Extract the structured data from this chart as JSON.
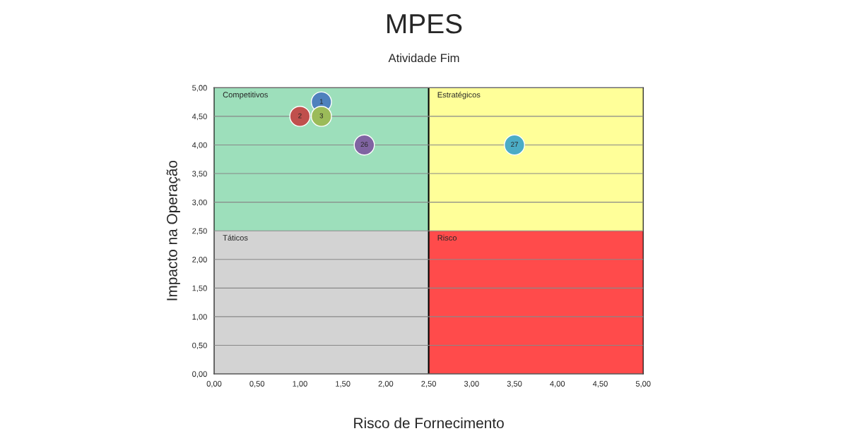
{
  "chart_data": {
    "type": "scatter",
    "title": "MPES",
    "subtitle": "Atividade Fim",
    "xlabel": "Risco de Fornecimento",
    "ylabel": "Impacto na Operação",
    "xlim": [
      0,
      5
    ],
    "ylim": [
      0,
      5
    ],
    "xticks": [
      {
        "value": 0,
        "label": "0,00"
      },
      {
        "value": 0.5,
        "label": "0,50"
      },
      {
        "value": 1,
        "label": "1,00"
      },
      {
        "value": 1.5,
        "label": "1,50"
      },
      {
        "value": 2,
        "label": "2,00"
      },
      {
        "value": 2.5,
        "label": "2,50"
      },
      {
        "value": 3,
        "label": "3,00"
      },
      {
        "value": 3.5,
        "label": "3,50"
      },
      {
        "value": 4,
        "label": "4,00"
      },
      {
        "value": 4.5,
        "label": "4,50"
      },
      {
        "value": 5,
        "label": "5,00"
      }
    ],
    "yticks": [
      {
        "value": 0,
        "label": "0,00"
      },
      {
        "value": 0.5,
        "label": "0,50"
      },
      {
        "value": 1,
        "label": "1,00"
      },
      {
        "value": 1.5,
        "label": "1,50"
      },
      {
        "value": 2,
        "label": "2,00"
      },
      {
        "value": 2.5,
        "label": "2,50"
      },
      {
        "value": 3,
        "label": "3,00"
      },
      {
        "value": 3.5,
        "label": "3,50"
      },
      {
        "value": 4,
        "label": "4,00"
      },
      {
        "value": 4.5,
        "label": "4,50"
      },
      {
        "value": 5,
        "label": "5,00"
      }
    ],
    "grid": "y",
    "marker": "circle",
    "bands": [
      {
        "axis": "x",
        "from": 0,
        "to": 2.5,
        "label": "Competitivos",
        "color": "#9ddfbb"
      },
      {
        "axis": "x",
        "from": 2.5,
        "to": 5,
        "label": "Estratégicos",
        "color": "#ffff99"
      },
      {
        "axis": "x",
        "from": 0,
        "to": 2.5,
        "label": "Táticos",
        "color": "#d3d3d3"
      },
      {
        "axis": "x",
        "from": 2.5,
        "to": 5,
        "label": "Risco",
        "color": "#ff4b4b"
      }
    ],
    "ref_lines": [
      {
        "axis": "x",
        "value": 2.5,
        "color": "#000000"
      }
    ],
    "series": [
      {
        "name": "1",
        "color": "#4f81bd",
        "x": [
          1.25
        ],
        "values": [
          4.75
        ]
      },
      {
        "name": "2",
        "color": "#c0504d",
        "x": [
          1.0
        ],
        "values": [
          4.5
        ]
      },
      {
        "name": "3",
        "color": "#9bbb59",
        "x": [
          1.25
        ],
        "values": [
          4.5
        ]
      },
      {
        "name": "26",
        "color": "#8064a2",
        "x": [
          1.75
        ],
        "values": [
          4.0
        ]
      },
      {
        "name": "27",
        "color": "#4bacc6",
        "x": [
          3.5
        ],
        "values": [
          4.0
        ]
      }
    ]
  }
}
